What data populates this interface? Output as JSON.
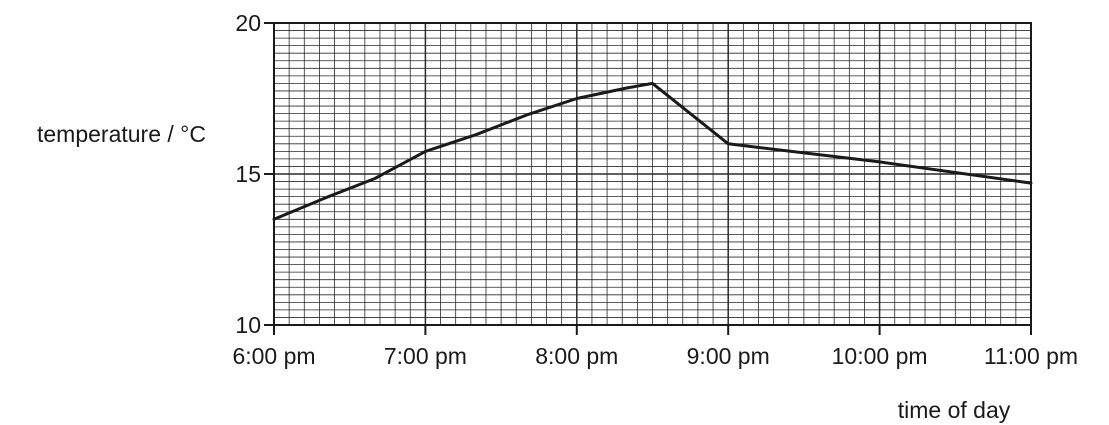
{
  "chart_data": {
    "type": "line",
    "title": "",
    "xlabel": "time of day",
    "ylabel": "temperature / °C",
    "x_ticks": [
      "6:00 pm",
      "7:00 pm",
      "8:00 pm",
      "9:00 pm",
      "10:00 pm",
      "11:00 pm"
    ],
    "x_ticks_hours": [
      18,
      19,
      20,
      21,
      22,
      23
    ],
    "y_ticks": [
      10,
      15,
      20
    ],
    "xlim_hours": [
      18,
      23
    ],
    "ylim": [
      10,
      20
    ],
    "grid": "on",
    "series": [
      {
        "points": [
          {
            "x": "6:00 pm",
            "y": 13.5
          },
          {
            "x": "6:20 pm",
            "y": 14.2
          },
          {
            "x": "6:40 pm",
            "y": 14.85
          },
          {
            "x": "7:00 pm",
            "y": 15.75
          },
          {
            "x": "7:20 pm",
            "y": 16.3
          },
          {
            "x": "7:40 pm",
            "y": 16.95
          },
          {
            "x": "8:00 pm",
            "y": 17.5
          },
          {
            "x": "8:20 pm",
            "y": 17.85
          },
          {
            "x": "8:30 pm",
            "y": 18.0
          },
          {
            "x": "9:00 pm",
            "y": 16.0
          },
          {
            "x": "10:00 pm",
            "y": 15.4
          },
          {
            "x": "11:00 pm",
            "y": 14.7
          }
        ]
      }
    ]
  }
}
